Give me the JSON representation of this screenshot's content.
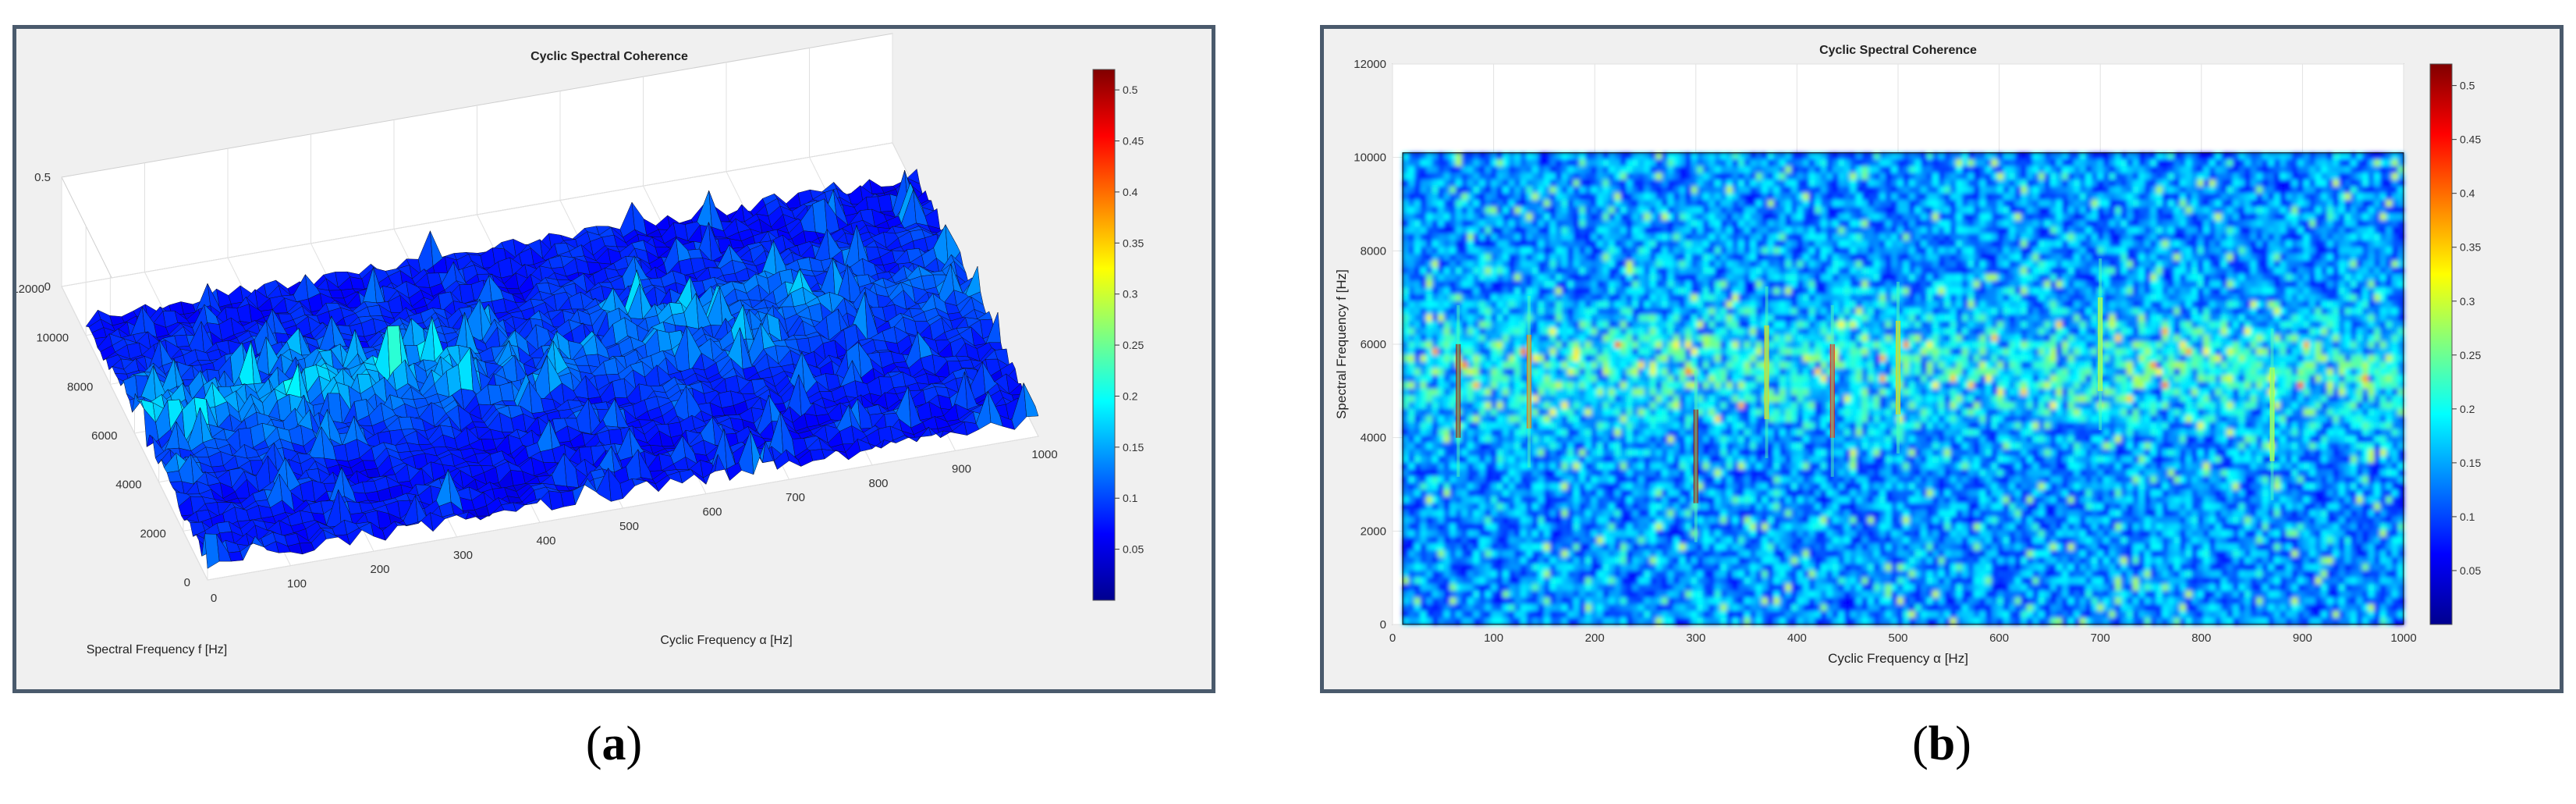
{
  "captions": {
    "a": "a",
    "b": "b"
  },
  "chart_data": [
    {
      "type": "surface",
      "title": "Cyclic Spectral Coherence",
      "xlabel": "Cyclic Frequency α [Hz]",
      "ylabel": "Spectral Frequency f [Hz]",
      "xlim": [
        0,
        1000
      ],
      "ylim": [
        0,
        12000
      ],
      "zlim": [
        0,
        0.5
      ],
      "x_ticks": [
        "0",
        "100",
        "200",
        "300",
        "400",
        "500",
        "600",
        "700",
        "800",
        "900",
        "1000"
      ],
      "y_ticks": [
        "0",
        "2000",
        "4000",
        "6000",
        "8000",
        "10000",
        "12000"
      ],
      "z_ticks": [
        "0",
        "0.5"
      ],
      "data_extent": {
        "x": [
          0,
          1000
        ],
        "y": [
          0,
          10000
        ]
      },
      "colorbar": {
        "ticks": [
          "0.05",
          "0.1",
          "0.15",
          "0.2",
          "0.25",
          "0.3",
          "0.35",
          "0.4",
          "0.45",
          "0.5"
        ],
        "range": [
          0,
          0.52
        ],
        "colormap": "jet"
      },
      "grid": true
    },
    {
      "type": "heatmap",
      "title": "Cyclic Spectral Coherence",
      "xlabel": "Cyclic Frequency α [Hz]",
      "ylabel": "Spectral Frequency f [Hz]",
      "xlim": [
        0,
        1000
      ],
      "ylim": [
        0,
        12000
      ],
      "x_ticks": [
        "0",
        "100",
        "200",
        "300",
        "400",
        "500",
        "600",
        "700",
        "800",
        "900",
        "1000"
      ],
      "y_ticks": [
        "0",
        "2000",
        "4000",
        "6000",
        "8000",
        "10000",
        "12000"
      ],
      "data_extent": {
        "x": [
          10,
          1000
        ],
        "y": [
          0,
          10100
        ]
      },
      "colorbar": {
        "ticks": [
          "0.05",
          "0.1",
          "0.15",
          "0.2",
          "0.25",
          "0.3",
          "0.35",
          "0.4",
          "0.45",
          "0.5"
        ],
        "range": [
          0,
          0.52
        ],
        "colormap": "jet"
      },
      "highlights": [
        {
          "alpha": 65,
          "f": 5000,
          "value": 0.5
        },
        {
          "alpha": 135,
          "f": 5200,
          "value": 0.4
        },
        {
          "alpha": 300,
          "f": 3600,
          "value": 0.5
        },
        {
          "alpha": 370,
          "f": 5400,
          "value": 0.35
        },
        {
          "alpha": 435,
          "f": 5000,
          "value": 0.45
        },
        {
          "alpha": 500,
          "f": 5500,
          "value": 0.35
        },
        {
          "alpha": 700,
          "f": 6000,
          "value": 0.3
        },
        {
          "alpha": 870,
          "f": 4500,
          "value": 0.3
        }
      ],
      "grid": true
    }
  ]
}
